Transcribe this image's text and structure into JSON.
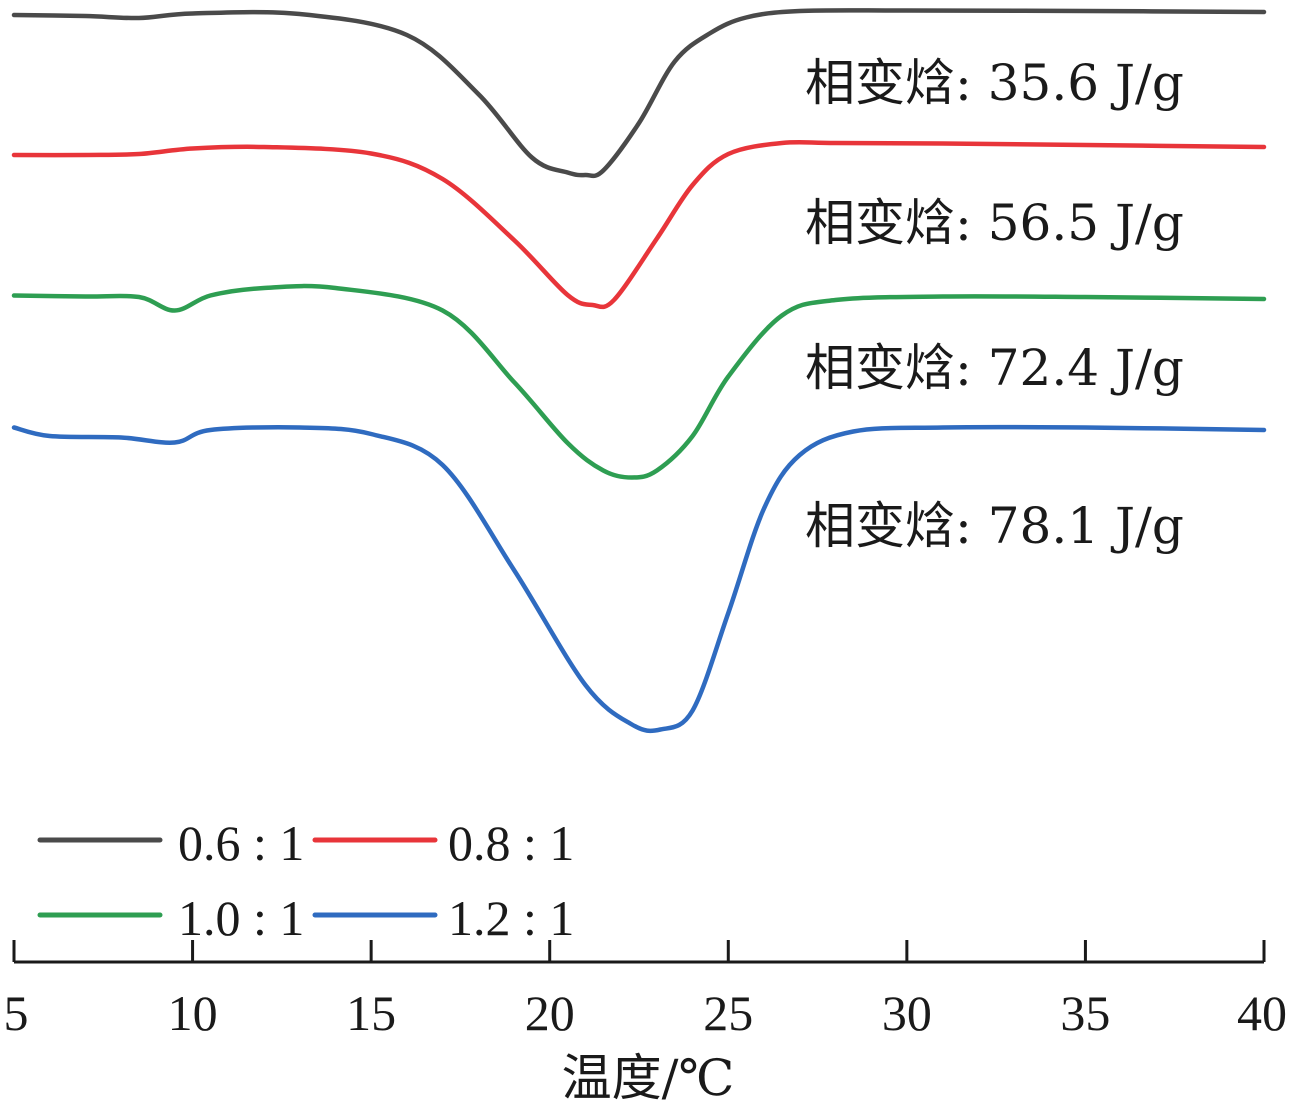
{
  "chart_data": {
    "type": "line",
    "title": "",
    "xlabel": "温度/℃",
    "ylabel": "",
    "xlim": [
      5,
      40
    ],
    "x_ticks": [
      5,
      10,
      15,
      20,
      25,
      30,
      35,
      40
    ],
    "x_tick_labels": [
      "5",
      "10",
      "15",
      "20",
      "25",
      "30",
      "35",
      "40"
    ],
    "grid": false,
    "legend_position": "bottom-left",
    "series": [
      {
        "name": "0.6:1",
        "legend_label": "0.6 : 1",
        "color": "#4a4a4a",
        "annotation": "相变焓: 35.6 J/g",
        "peak_temperature": 21.0,
        "x": [
          5,
          7,
          8.5,
          10,
          13,
          16,
          18,
          19.5,
          20.5,
          21,
          21.5,
          22.5,
          23.5,
          24.5,
          25.5,
          27,
          30,
          35,
          40
        ],
        "y": [
          1.0,
          0.8,
          0.4,
          1.3,
          1.2,
          -3.0,
          -14.8,
          -27.5,
          -30.5,
          -31.0,
          -30.1,
          -20.6,
          -8.3,
          -2.6,
          0.5,
          1.8,
          1.9,
          1.8,
          1.6
        ]
      },
      {
        "name": "0.8:1",
        "legend_label": "0.8 : 1",
        "color": "#e8353a",
        "annotation": "相变焓: 56.5 J/g",
        "peak_temperature": 21.2,
        "x": [
          5,
          7,
          8.5,
          10,
          12,
          15,
          17,
          19,
          20.5,
          21.2,
          21.8,
          23,
          24,
          25,
          26.5,
          28,
          31,
          35,
          40
        ],
        "y": [
          1.0,
          1.0,
          1.2,
          2.3,
          2.6,
          1.3,
          -3.8,
          -16.0,
          -27.0,
          -29.0,
          -28.0,
          -15.7,
          -5.0,
          1.2,
          3.4,
          3.4,
          3.3,
          3.0,
          2.6
        ]
      },
      {
        "name": "1.0:1",
        "legend_label": "1.0 : 1",
        "color": "#2e9e52",
        "annotation": "相变焓: 72.4 J/g",
        "peak_temperature": 22.3,
        "x": [
          5,
          7,
          8.5,
          9.5,
          10.5,
          12,
          14,
          17,
          19,
          20.5,
          21.5,
          22.3,
          23,
          24,
          25,
          26.5,
          28,
          31,
          35,
          40
        ],
        "y": [
          0.5,
          0.3,
          0.2,
          -2.5,
          0.5,
          2.0,
          2.0,
          -2.5,
          -16.8,
          -29.0,
          -34.5,
          -35.9,
          -34.5,
          -27.6,
          -15.7,
          -3.5,
          -0.4,
          0.3,
          0.2,
          -0.2
        ]
      },
      {
        "name": "1.2:1",
        "legend_label": "1.2 : 1",
        "color": "#2f6bc0",
        "annotation": "相变焓: 78.1 J/g",
        "peak_temperature": 23.1,
        "x": [
          5,
          6,
          8,
          9.5,
          10.5,
          13,
          15,
          17,
          19,
          21,
          22.3,
          23.1,
          24,
          25,
          26,
          27,
          28.5,
          31,
          35,
          40
        ],
        "y": [
          0.5,
          -1.2,
          -1.5,
          -2.5,
          0.0,
          0.5,
          -0.8,
          -7.0,
          -28.0,
          -51.0,
          -58.9,
          -59.9,
          -56.1,
          -36.6,
          -15.7,
          -5.0,
          -0.3,
          0.5,
          0.5,
          0.0
        ]
      }
    ]
  }
}
